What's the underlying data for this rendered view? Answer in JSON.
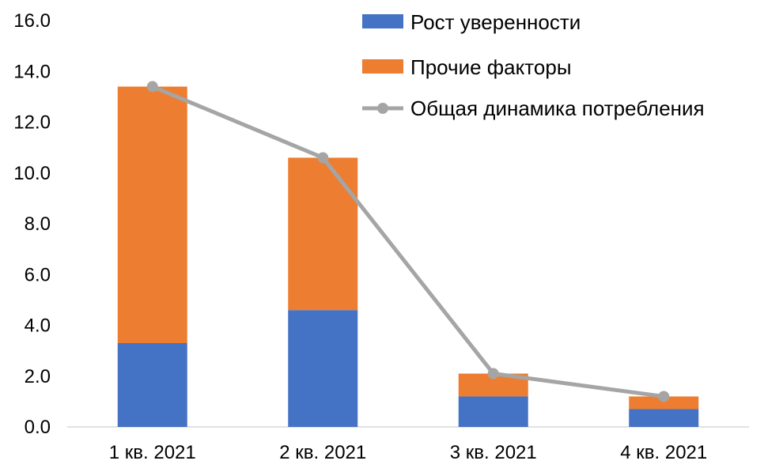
{
  "chart_data": {
    "type": "bar",
    "stacked": true,
    "categories": [
      "1 кв. 2021",
      "2 кв. 2021",
      "3 кв. 2021",
      "4 кв. 2021"
    ],
    "series": [
      {
        "name": "Рост уверенности",
        "kind": "bar",
        "color": "#4472C4",
        "values": [
          3.3,
          4.6,
          1.2,
          0.7
        ]
      },
      {
        "name": "Прочие факторы",
        "kind": "bar",
        "color": "#ED7D31",
        "values": [
          10.1,
          6.0,
          0.9,
          0.5
        ]
      },
      {
        "name": "Общая динамика потребления",
        "kind": "line",
        "color": "#A5A5A5",
        "values": [
          13.4,
          10.6,
          2.1,
          1.2
        ]
      }
    ],
    "y_ticks": [
      "0.0",
      "2.0",
      "4.0",
      "6.0",
      "8.0",
      "10.0",
      "12.0",
      "14.0",
      "16.0"
    ],
    "ylim": [
      0,
      16
    ],
    "grid": false,
    "legend_position": "top-right"
  }
}
